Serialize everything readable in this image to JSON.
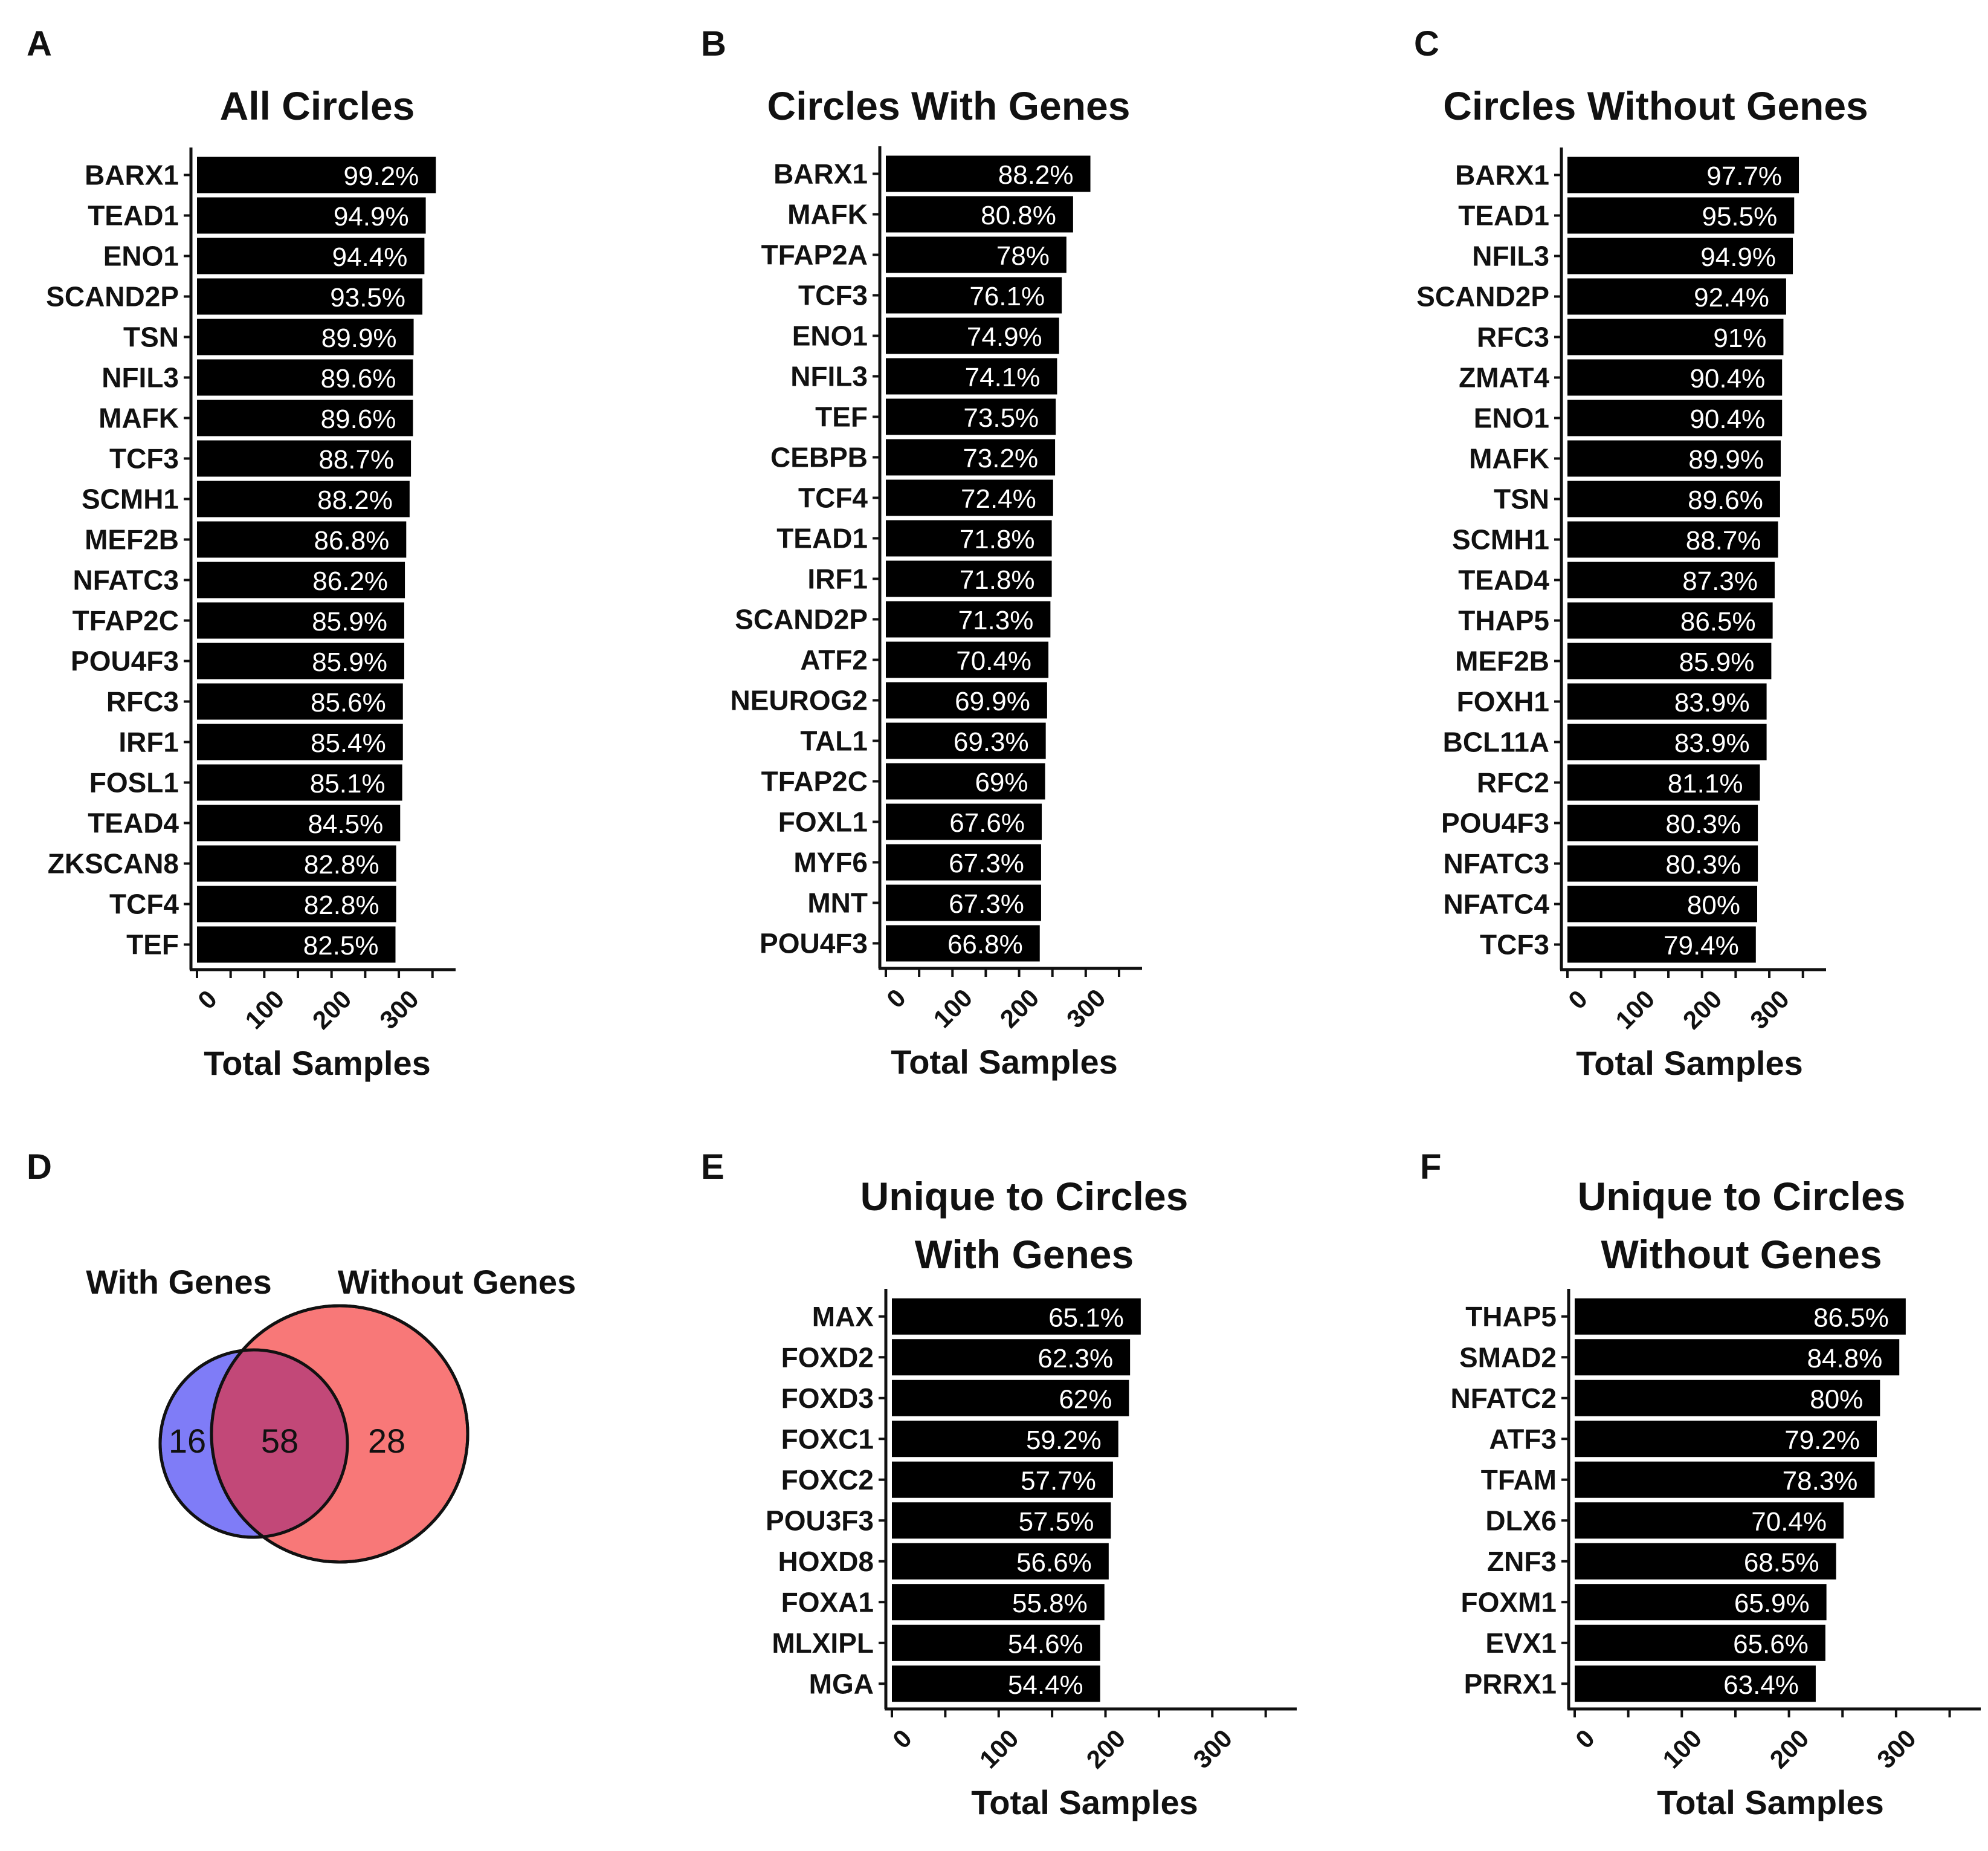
{
  "panel_letters": [
    "A",
    "B",
    "C",
    "D",
    "E",
    "F"
  ],
  "colors": {
    "bar": "#000000",
    "axis": "#111111",
    "venn_left": "#7f7cf7",
    "venn_right": "#f87878",
    "venn_overlap": "#c24878"
  },
  "chart_data": [
    {
      "id": "A",
      "type": "bar",
      "orientation": "horizontal",
      "title": "All Circles",
      "xlabel": "Total Samples",
      "xlim": [
        0,
        370
      ],
      "xticks": [
        "0",
        "100",
        "200",
        "300"
      ],
      "categories": [
        "BARX1",
        "TEAD1",
        "ENO1",
        "SCAND2P",
        "TSN",
        "NFIL3",
        "MAFK",
        "TCF3",
        "SCMH1",
        "MEF2B",
        "NFATC3",
        "TFAP2C",
        "POU4F3",
        "RFC3",
        "IRF1",
        "FOSL1",
        "TEAD4",
        "ZKSCAN8",
        "TCF4",
        "TEF"
      ],
      "values": [
        355,
        340,
        338,
        335,
        322,
        321,
        321,
        318,
        316,
        311,
        309,
        308,
        308,
        306,
        306,
        305,
        302,
        296,
        296,
        295
      ],
      "labels": [
        "99.2%",
        "94.9%",
        "94.4%",
        "93.5%",
        "89.9%",
        "89.6%",
        "89.6%",
        "88.7%",
        "88.2%",
        "86.8%",
        "86.2%",
        "85.9%",
        "85.9%",
        "85.6%",
        "85.4%",
        "85.1%",
        "84.5%",
        "82.8%",
        "82.8%",
        "82.5%"
      ]
    },
    {
      "id": "B",
      "type": "bar",
      "orientation": "horizontal",
      "title": "Circles With Genes",
      "xlabel": "Total Samples",
      "xlim": [
        0,
        370
      ],
      "xticks": [
        "0",
        "100",
        "200",
        "300"
      ],
      "categories": [
        "BARX1",
        "MAFK",
        "TFAP2A",
        "TCF3",
        "ENO1",
        "NFIL3",
        "TEF",
        "CEBPB",
        "TCF4",
        "TEAD1",
        "IRF1",
        "SCAND2P",
        "ATF2",
        "NEUROG2",
        "TAL1",
        "TFAP2C",
        "FOXL1",
        "MYF6",
        "MNT",
        "POU4F3"
      ],
      "values": [
        307,
        281,
        271,
        264,
        260,
        257,
        255,
        254,
        251,
        249,
        249,
        247,
        244,
        242,
        240,
        239,
        234,
        233,
        233,
        231
      ],
      "labels": [
        "88.2%",
        "80.8%",
        "78%",
        "76.1%",
        "74.9%",
        "74.1%",
        "73.5%",
        "73.2%",
        "72.4%",
        "71.8%",
        "71.8%",
        "71.3%",
        "70.4%",
        "69.9%",
        "69.3%",
        "69%",
        "67.6%",
        "67.3%",
        "67.3%",
        "66.8%"
      ]
    },
    {
      "id": "C",
      "type": "bar",
      "orientation": "horizontal",
      "title": "Circles Without Genes",
      "xlabel": "Total Samples",
      "xlim": [
        0,
        370
      ],
      "xticks": [
        "0",
        "100",
        "200",
        "300"
      ],
      "categories": [
        "BARX1",
        "TEAD1",
        "NFIL3",
        "SCAND2P",
        "RFC3",
        "ZMAT4",
        "ENO1",
        "MAFK",
        "TSN",
        "SCMH1",
        "TEAD4",
        "THAP5",
        "MEF2B",
        "FOXH1",
        "BCL11A",
        "RFC2",
        "POU4F3",
        "NFATC3",
        "NFATC4",
        "TCF3"
      ],
      "values": [
        344,
        337,
        335,
        325,
        321,
        319,
        319,
        317,
        316,
        313,
        308,
        305,
        303,
        296,
        296,
        286,
        283,
        283,
        282,
        280
      ],
      "labels": [
        "97.7%",
        "95.5%",
        "94.9%",
        "92.4%",
        "91%",
        "90.4%",
        "90.4%",
        "89.9%",
        "89.6%",
        "88.7%",
        "87.3%",
        "86.5%",
        "85.9%",
        "83.9%",
        "83.9%",
        "81.1%",
        "80.3%",
        "80.3%",
        "80%",
        "79.4%"
      ]
    },
    {
      "id": "D",
      "type": "venn",
      "sets": [
        {
          "name": "With Genes",
          "count": 16
        },
        {
          "name": "Without Genes",
          "count": 28
        }
      ],
      "overlap": 58
    },
    {
      "id": "E",
      "type": "bar",
      "orientation": "horizontal",
      "title": [
        "Unique to Circles",
        "With Genes"
      ],
      "xlabel": "Total Samples",
      "xlim": [
        0,
        370
      ],
      "xticks": [
        "0",
        "100",
        "200",
        "300"
      ],
      "categories": [
        "MAX",
        "FOXD2",
        "FOXD3",
        "FOXC1",
        "FOXC2",
        "POU3F3",
        "HOXD8",
        "FOXA1",
        "MLXIPL",
        "MGA"
      ],
      "values": [
        233,
        223,
        222,
        212,
        207,
        205,
        203,
        199,
        195,
        195
      ],
      "labels": [
        "65.1%",
        "62.3%",
        "62%",
        "59.2%",
        "57.7%",
        "57.5%",
        "56.6%",
        "55.8%",
        "54.6%",
        "54.4%"
      ]
    },
    {
      "id": "F",
      "type": "bar",
      "orientation": "horizontal",
      "title": [
        "Unique to Circles",
        "Without Genes"
      ],
      "xlabel": "Total Samples",
      "xlim": [
        0,
        370
      ],
      "xticks": [
        "0",
        "100",
        "200",
        "300"
      ],
      "categories": [
        "THAP5",
        "SMAD2",
        "NFATC2",
        "ATF3",
        "TFAM",
        "DLX6",
        "ZNF3",
        "FOXM1",
        "EVX1",
        "PRRX1"
      ],
      "values": [
        309,
        303,
        285,
        282,
        280,
        251,
        244,
        235,
        234,
        225
      ],
      "labels": [
        "86.5%",
        "84.8%",
        "80%",
        "79.2%",
        "78.3%",
        "70.4%",
        "68.5%",
        "65.9%",
        "65.6%",
        "63.4%"
      ]
    }
  ]
}
